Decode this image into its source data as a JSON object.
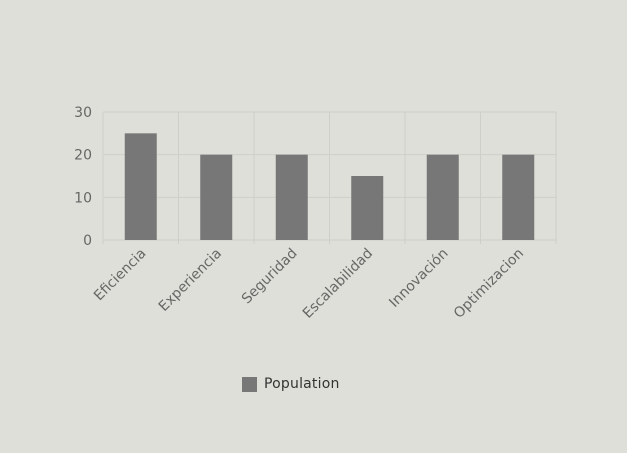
{
  "chart_data": {
    "type": "bar",
    "categories": [
      "Eficiencia",
      "Experiencia",
      "Seguridad",
      "Escalabilidad",
      "Innovación",
      "Optimizacion"
    ],
    "series": [
      {
        "name": "Population",
        "values": [
          25,
          20,
          20,
          15,
          20,
          20
        ]
      }
    ],
    "ylim": [
      0,
      30
    ],
    "yticks": [
      0,
      10,
      20,
      30
    ],
    "grid": true,
    "legend_position": "bottom",
    "colors": {
      "bar": "#777777",
      "grid": "#cfcfc9",
      "axis_text": "#666666",
      "background": "#dfdfd9"
    }
  },
  "legend": {
    "label": "Population"
  }
}
